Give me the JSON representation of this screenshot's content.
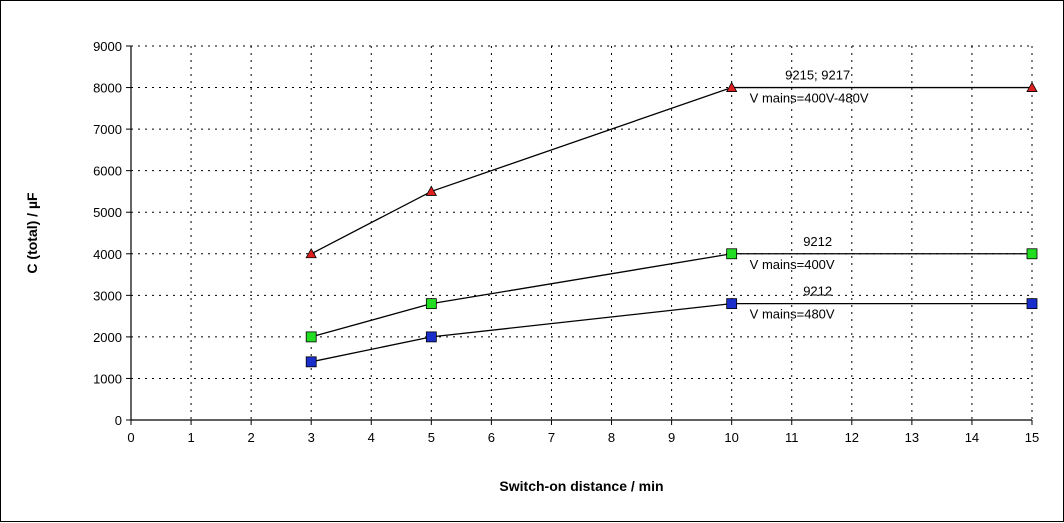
{
  "chart_data": {
    "type": "line",
    "xlabel": "Switch-on distance / min",
    "ylabel": "C (total) / µF",
    "xlim": [
      0,
      15
    ],
    "ylim": [
      0,
      9000
    ],
    "xticks": [
      "0",
      "1",
      "2",
      "3",
      "4",
      "5",
      "6",
      "7",
      "8",
      "9",
      "10",
      "11",
      "12",
      "13",
      "14",
      "15"
    ],
    "yticks": [
      "0",
      "1000",
      "2000",
      "3000",
      "4000",
      "5000",
      "6000",
      "7000",
      "8000",
      "9000"
    ],
    "grid": true,
    "series": [
      {
        "x": [
          3,
          5,
          10,
          15
        ],
        "y": [
          4000,
          5500,
          8000,
          8000
        ],
        "marker": "triangle",
        "color": "#e02020"
      },
      {
        "x": [
          3,
          5,
          10,
          15
        ],
        "y": [
          2000,
          2800,
          4000,
          4000
        ],
        "marker": "square",
        "color": "#22dd22"
      },
      {
        "x": [
          3,
          5,
          10,
          15
        ],
        "y": [
          1400,
          2000,
          2800,
          2800
        ],
        "marker": "square",
        "color": "#1a2ecc"
      }
    ],
    "annotations": [
      {
        "line1": "9215; 9217",
        "line2": "V mains=400V-480V",
        "x": 10,
        "y": 8000
      },
      {
        "line1": "9212",
        "line2": "V mains=400V",
        "x": 10,
        "y": 4000
      },
      {
        "line1": "9212",
        "line2": "V mains=480V",
        "x": 10,
        "y": 2800
      }
    ]
  }
}
